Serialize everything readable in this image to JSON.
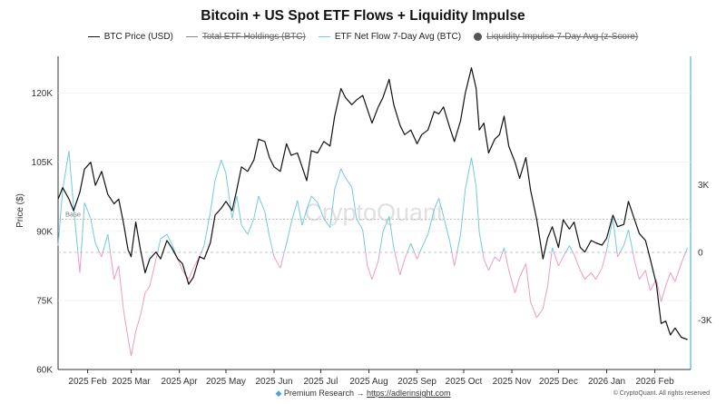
{
  "title": "Bitcoin + US Spot ETF Flows + Liquidity Impulse",
  "legend": [
    {
      "label": "BTC Price (USD)",
      "color": "#111111",
      "marker": "line",
      "hidden": false
    },
    {
      "label": "Total ETF Holdings (BTC)",
      "color": "#888888",
      "marker": "line",
      "hidden": true
    },
    {
      "label": "ETF Net Flow 7-Day Avg (BTC)",
      "color": "#74c9dc",
      "marker": "line",
      "hidden": false
    },
    {
      "label": "Liquidity Impulse 7-Day Avg (z-Score)",
      "color": "#555555",
      "marker": "dot",
      "hidden": true
    }
  ],
  "footer": {
    "icon": "diamond-icon",
    "prefix": "Premium Research →",
    "link": "https://adlerinsight.com"
  },
  "copyright": "© CryptoQuant. All rights reserved",
  "watermark": "CryptoQuant",
  "chart_data": {
    "type": "line",
    "x_tick_labels": [
      "2025 Feb",
      "2025 Mar",
      "2025 Apr",
      "2025 May",
      "2025 Jun",
      "2025 Jul",
      "2025 Aug",
      "2025 Sep",
      "2025 Oct",
      "2025 Nov",
      "2025 Dec",
      "2026 Jan",
      "2026 Feb"
    ],
    "y_left": {
      "label": "Price ($)",
      "range": [
        60000,
        128000
      ],
      "ticks": [
        60000,
        75000,
        90000,
        105000,
        120000
      ],
      "tick_labels": [
        "60K",
        "75K",
        "90K",
        "105K",
        "120K"
      ]
    },
    "y_right": {
      "label": "",
      "range": [
        -5200,
        8700
      ],
      "ticks": [
        -3000,
        0,
        3000
      ],
      "tick_labels": [
        "-3K",
        "0",
        "3K"
      ]
    },
    "baseline": {
      "label": "Base",
      "y_left": 92600
    },
    "x_range": [
      "2025-01-13",
      "2026-02-24"
    ],
    "series": [
      {
        "name": "BTC Price (USD)",
        "axis": "left",
        "color": "#111111",
        "points": [
          [
            "2025-01-13",
            97000
          ],
          [
            "2025-01-16",
            99500
          ],
          [
            "2025-01-20",
            97000
          ],
          [
            "2025-01-23",
            94500
          ],
          [
            "2025-01-27",
            98500
          ],
          [
            "2025-01-30",
            103500
          ],
          [
            "2025-02-03",
            105000
          ],
          [
            "2025-02-06",
            100000
          ],
          [
            "2025-02-10",
            103000
          ],
          [
            "2025-02-14",
            98000
          ],
          [
            "2025-02-18",
            96000
          ],
          [
            "2025-02-21",
            97000
          ],
          [
            "2025-02-24",
            92000
          ],
          [
            "2025-02-27",
            86000
          ],
          [
            "2025-03-01",
            84500
          ],
          [
            "2025-03-04",
            92000
          ],
          [
            "2025-03-07",
            86000
          ],
          [
            "2025-03-10",
            81000
          ],
          [
            "2025-03-13",
            84000
          ],
          [
            "2025-03-17",
            85500
          ],
          [
            "2025-03-20",
            84000
          ],
          [
            "2025-03-24",
            88000
          ],
          [
            "2025-03-27",
            86500
          ],
          [
            "2025-03-31",
            84000
          ],
          [
            "2025-04-03",
            83000
          ],
          [
            "2025-04-07",
            78500
          ],
          [
            "2025-04-10",
            80000
          ],
          [
            "2025-04-14",
            84500
          ],
          [
            "2025-04-17",
            84000
          ],
          [
            "2025-04-21",
            87500
          ],
          [
            "2025-04-24",
            93500
          ],
          [
            "2025-04-28",
            95000
          ],
          [
            "2025-05-01",
            96500
          ],
          [
            "2025-05-05",
            94500
          ],
          [
            "2025-05-08",
            99000
          ],
          [
            "2025-05-11",
            104000
          ],
          [
            "2025-05-15",
            103000
          ],
          [
            "2025-05-19",
            105500
          ],
          [
            "2025-05-22",
            110000
          ],
          [
            "2025-05-26",
            109500
          ],
          [
            "2025-05-29",
            106000
          ],
          [
            "2025-06-01",
            104000
          ],
          [
            "2025-06-05",
            103000
          ],
          [
            "2025-06-09",
            109000
          ],
          [
            "2025-06-12",
            106500
          ],
          [
            "2025-06-16",
            107000
          ],
          [
            "2025-06-19",
            104000
          ],
          [
            "2025-06-22",
            101000
          ],
          [
            "2025-06-25",
            107500
          ],
          [
            "2025-06-29",
            107000
          ],
          [
            "2025-07-03",
            109500
          ],
          [
            "2025-07-07",
            108500
          ],
          [
            "2025-07-10",
            115000
          ],
          [
            "2025-07-14",
            121000
          ],
          [
            "2025-07-17",
            119000
          ],
          [
            "2025-07-21",
            117500
          ],
          [
            "2025-07-24",
            118500
          ],
          [
            "2025-07-28",
            119500
          ],
          [
            "2025-07-31",
            116500
          ],
          [
            "2025-08-03",
            113500
          ],
          [
            "2025-08-07",
            117000
          ],
          [
            "2025-08-10",
            119000
          ],
          [
            "2025-08-14",
            123000
          ],
          [
            "2025-08-17",
            117500
          ],
          [
            "2025-08-21",
            113000
          ],
          [
            "2025-08-24",
            111000
          ],
          [
            "2025-08-28",
            112000
          ],
          [
            "2025-09-01",
            109000
          ],
          [
            "2025-09-04",
            111000
          ],
          [
            "2025-09-08",
            112000
          ],
          [
            "2025-09-12",
            116000
          ],
          [
            "2025-09-15",
            115500
          ],
          [
            "2025-09-18",
            117000
          ],
          [
            "2025-09-22",
            112500
          ],
          [
            "2025-09-25",
            109500
          ],
          [
            "2025-09-29",
            114000
          ],
          [
            "2025-10-02",
            120000
          ],
          [
            "2025-10-06",
            125500
          ],
          [
            "2025-10-09",
            121000
          ],
          [
            "2025-10-11",
            112000
          ],
          [
            "2025-10-14",
            113500
          ],
          [
            "2025-10-17",
            107000
          ],
          [
            "2025-10-21",
            110000
          ],
          [
            "2025-10-24",
            111000
          ],
          [
            "2025-10-27",
            115000
          ],
          [
            "2025-10-30",
            108500
          ],
          [
            "2025-11-03",
            105000
          ],
          [
            "2025-11-06",
            101500
          ],
          [
            "2025-11-10",
            106000
          ],
          [
            "2025-11-13",
            99000
          ],
          [
            "2025-11-17",
            92500
          ],
          [
            "2025-11-21",
            84000
          ],
          [
            "2025-11-24",
            88500
          ],
          [
            "2025-11-27",
            91000
          ],
          [
            "2025-12-01",
            86500
          ],
          [
            "2025-12-04",
            92500
          ],
          [
            "2025-12-08",
            90500
          ],
          [
            "2025-12-11",
            92000
          ],
          [
            "2025-12-15",
            86500
          ],
          [
            "2025-12-18",
            85500
          ],
          [
            "2025-12-22",
            88000
          ],
          [
            "2025-12-25",
            87500
          ],
          [
            "2025-12-29",
            87000
          ],
          [
            "2026-01-01",
            88500
          ],
          [
            "2026-01-05",
            93500
          ],
          [
            "2026-01-08",
            91000
          ],
          [
            "2026-01-12",
            91500
          ],
          [
            "2026-01-15",
            96500
          ],
          [
            "2026-01-19",
            92500
          ],
          [
            "2026-01-22",
            89500
          ],
          [
            "2026-01-26",
            88000
          ],
          [
            "2026-01-29",
            84000
          ],
          [
            "2026-02-02",
            78500
          ],
          [
            "2026-02-05",
            70000
          ],
          [
            "2026-02-08",
            70500
          ],
          [
            "2026-02-11",
            67500
          ],
          [
            "2026-02-14",
            69000
          ],
          [
            "2026-02-18",
            67000
          ],
          [
            "2026-02-22",
            66500
          ]
        ]
      },
      {
        "name": "ETF Net Flow 7-Day Avg (BTC)",
        "axis": "right",
        "color_positive": "#74c9dc",
        "color_negative": "#ee9ac4",
        "points": [
          [
            "2025-01-13",
            300
          ],
          [
            "2025-01-16",
            2800
          ],
          [
            "2025-01-20",
            4500
          ],
          [
            "2025-01-23",
            2000
          ],
          [
            "2025-01-27",
            -900
          ],
          [
            "2025-01-30",
            2200
          ],
          [
            "2025-02-03",
            1500
          ],
          [
            "2025-02-06",
            400
          ],
          [
            "2025-02-10",
            -200
          ],
          [
            "2025-02-14",
            800
          ],
          [
            "2025-02-18",
            -1200
          ],
          [
            "2025-02-21",
            -600
          ],
          [
            "2025-02-24",
            -2500
          ],
          [
            "2025-02-27",
            -3800
          ],
          [
            "2025-03-01",
            -4600
          ],
          [
            "2025-03-04",
            -3500
          ],
          [
            "2025-03-07",
            -2800
          ],
          [
            "2025-03-10",
            -1800
          ],
          [
            "2025-03-13",
            -1500
          ],
          [
            "2025-03-17",
            -300
          ],
          [
            "2025-03-20",
            600
          ],
          [
            "2025-03-24",
            800
          ],
          [
            "2025-03-27",
            400
          ],
          [
            "2025-03-31",
            -300
          ],
          [
            "2025-04-03",
            -800
          ],
          [
            "2025-04-07",
            -1200
          ],
          [
            "2025-04-10",
            -700
          ],
          [
            "2025-04-14",
            -200
          ],
          [
            "2025-04-17",
            300
          ],
          [
            "2025-04-21",
            1800
          ],
          [
            "2025-04-24",
            3200
          ],
          [
            "2025-04-28",
            4100
          ],
          [
            "2025-05-01",
            3500
          ],
          [
            "2025-05-05",
            1500
          ],
          [
            "2025-05-08",
            2500
          ],
          [
            "2025-05-11",
            1200
          ],
          [
            "2025-05-15",
            800
          ],
          [
            "2025-05-19",
            1500
          ],
          [
            "2025-05-22",
            2500
          ],
          [
            "2025-05-26",
            1800
          ],
          [
            "2025-05-29",
            700
          ],
          [
            "2025-06-01",
            -200
          ],
          [
            "2025-06-05",
            -700
          ],
          [
            "2025-06-09",
            400
          ],
          [
            "2025-06-12",
            1300
          ],
          [
            "2025-06-16",
            2300
          ],
          [
            "2025-06-19",
            1200
          ],
          [
            "2025-06-22",
            1900
          ],
          [
            "2025-06-25",
            2500
          ],
          [
            "2025-06-29",
            2200
          ],
          [
            "2025-07-03",
            1500
          ],
          [
            "2025-07-07",
            1100
          ],
          [
            "2025-07-10",
            2800
          ],
          [
            "2025-07-14",
            3700
          ],
          [
            "2025-07-17",
            3300
          ],
          [
            "2025-07-21",
            2900
          ],
          [
            "2025-07-24",
            1500
          ],
          [
            "2025-07-28",
            1000
          ],
          [
            "2025-07-31",
            -600
          ],
          [
            "2025-08-03",
            -1200
          ],
          [
            "2025-08-07",
            -400
          ],
          [
            "2025-08-10",
            900
          ],
          [
            "2025-08-14",
            1600
          ],
          [
            "2025-08-17",
            200
          ],
          [
            "2025-08-21",
            -1000
          ],
          [
            "2025-08-24",
            -300
          ],
          [
            "2025-08-28",
            400
          ],
          [
            "2025-09-01",
            -300
          ],
          [
            "2025-09-04",
            200
          ],
          [
            "2025-09-08",
            800
          ],
          [
            "2025-09-12",
            1900
          ],
          [
            "2025-09-15",
            2400
          ],
          [
            "2025-09-18",
            1600
          ],
          [
            "2025-09-22",
            500
          ],
          [
            "2025-09-25",
            -600
          ],
          [
            "2025-09-29",
            800
          ],
          [
            "2025-10-02",
            2800
          ],
          [
            "2025-10-06",
            4200
          ],
          [
            "2025-10-09",
            2900
          ],
          [
            "2025-10-11",
            900
          ],
          [
            "2025-10-14",
            -300
          ],
          [
            "2025-10-17",
            -800
          ],
          [
            "2025-10-21",
            -200
          ],
          [
            "2025-10-24",
            -400
          ],
          [
            "2025-10-27",
            200
          ],
          [
            "2025-10-30",
            -800
          ],
          [
            "2025-11-03",
            -1800
          ],
          [
            "2025-11-06",
            -1100
          ],
          [
            "2025-11-10",
            -500
          ],
          [
            "2025-11-13",
            -2200
          ],
          [
            "2025-11-17",
            -2900
          ],
          [
            "2025-11-21",
            -2500
          ],
          [
            "2025-11-24",
            -1500
          ],
          [
            "2025-11-27",
            200
          ],
          [
            "2025-12-01",
            -600
          ],
          [
            "2025-12-04",
            -200
          ],
          [
            "2025-12-08",
            300
          ],
          [
            "2025-12-11",
            -100
          ],
          [
            "2025-12-15",
            -800
          ],
          [
            "2025-12-18",
            -1200
          ],
          [
            "2025-12-22",
            -900
          ],
          [
            "2025-12-25",
            -1200
          ],
          [
            "2025-12-29",
            -700
          ],
          [
            "2026-01-01",
            100
          ],
          [
            "2026-01-05",
            1500
          ],
          [
            "2026-01-08",
            -200
          ],
          [
            "2026-01-12",
            300
          ],
          [
            "2026-01-15",
            1000
          ],
          [
            "2026-01-19",
            -400
          ],
          [
            "2026-01-22",
            -1200
          ],
          [
            "2026-01-26",
            -800
          ],
          [
            "2026-01-29",
            -1700
          ],
          [
            "2026-02-02",
            -1200
          ],
          [
            "2026-02-05",
            -2200
          ],
          [
            "2026-02-08",
            -1500
          ],
          [
            "2026-02-11",
            -900
          ],
          [
            "2026-02-14",
            -1300
          ],
          [
            "2026-02-18",
            -500
          ],
          [
            "2026-02-22",
            200
          ]
        ]
      }
    ]
  }
}
